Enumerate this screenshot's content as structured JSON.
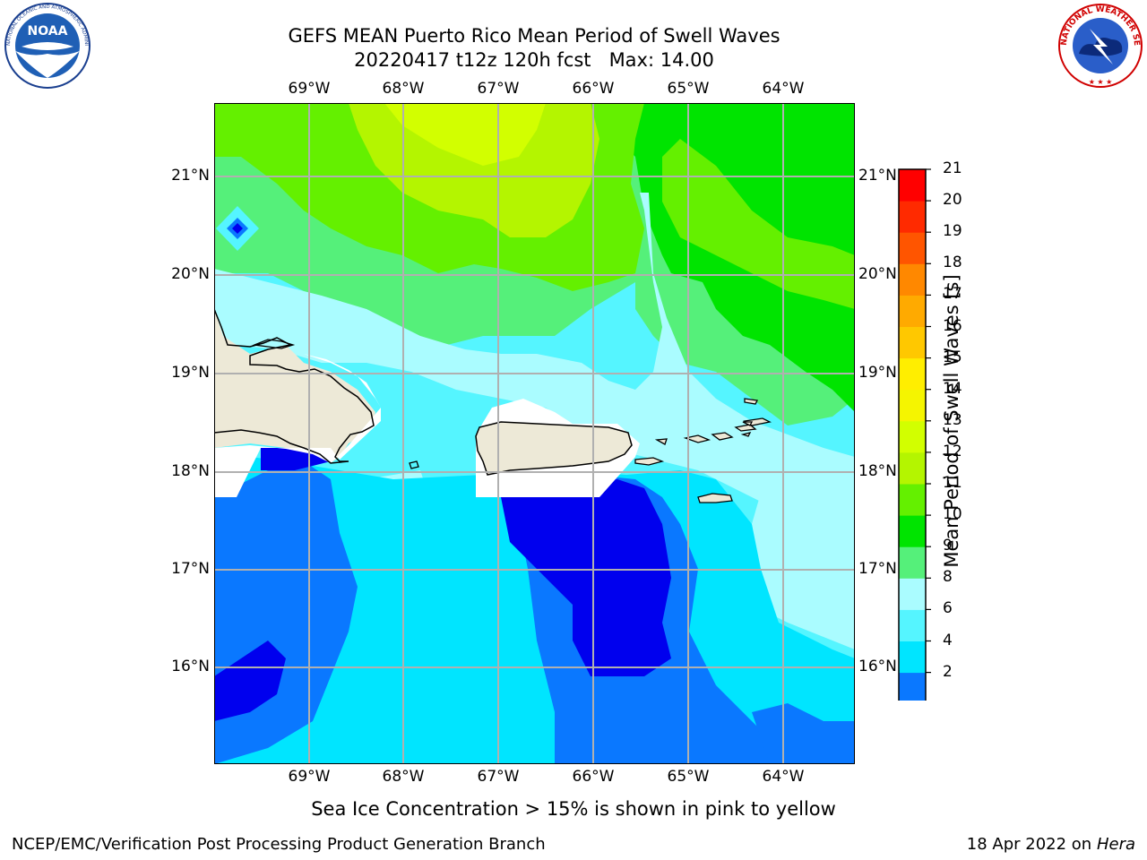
{
  "header": {
    "title_line1": "GEFS MEAN Puerto Rico Mean Period of Swell Waves",
    "title_line2": "20220417 t12z 120h fcst   Max: 14.00"
  },
  "logos": {
    "left": "NOAA",
    "left_ring_text": "NATIONAL OCEANIC AND ATMOSPHERIC ADMINISTRATION · U.S. DEPARTMENT OF COMMERCE",
    "right_ring_text": "NATIONAL WEATHER SERVICE"
  },
  "map": {
    "lon_labels": [
      "69°W",
      "68°W",
      "67°W",
      "66°W",
      "65°W",
      "64°W"
    ],
    "lat_labels": [
      "21°N",
      "20°N",
      "19°N",
      "18°N",
      "17°N",
      "16°N"
    ],
    "colors": {
      "land": "#ede9d7",
      "grid": "#b0b0b0"
    }
  },
  "colorbar": {
    "label": "Mean Period of Swell Waves [s]",
    "ticks": [
      "21",
      "20",
      "19",
      "18",
      "17",
      "16",
      "15",
      "14",
      "13",
      "12",
      "11",
      "10",
      "9",
      "8",
      "6",
      "4",
      "2"
    ],
    "colors": [
      "#0000ee",
      "#0a78ff",
      "#00e5ff",
      "#55f5ff",
      "#aafcff",
      "#55f07a",
      "#00e400",
      "#64f000",
      "#b4f500",
      "#d2ff00",
      "#f5f500",
      "#ffee00",
      "#ffc800",
      "#ffaa00",
      "#ff8800",
      "#ff5500",
      "#ff2a00",
      "#ff0000"
    ]
  },
  "note": "Sea Ice Concentration > 15% is shown in pink to yellow",
  "footer": {
    "left": "NCEP/EMC/Verification Post Processing Product Generation Branch",
    "right_date": "18 Apr 2022 on ",
    "right_machine": "Hera"
  }
}
